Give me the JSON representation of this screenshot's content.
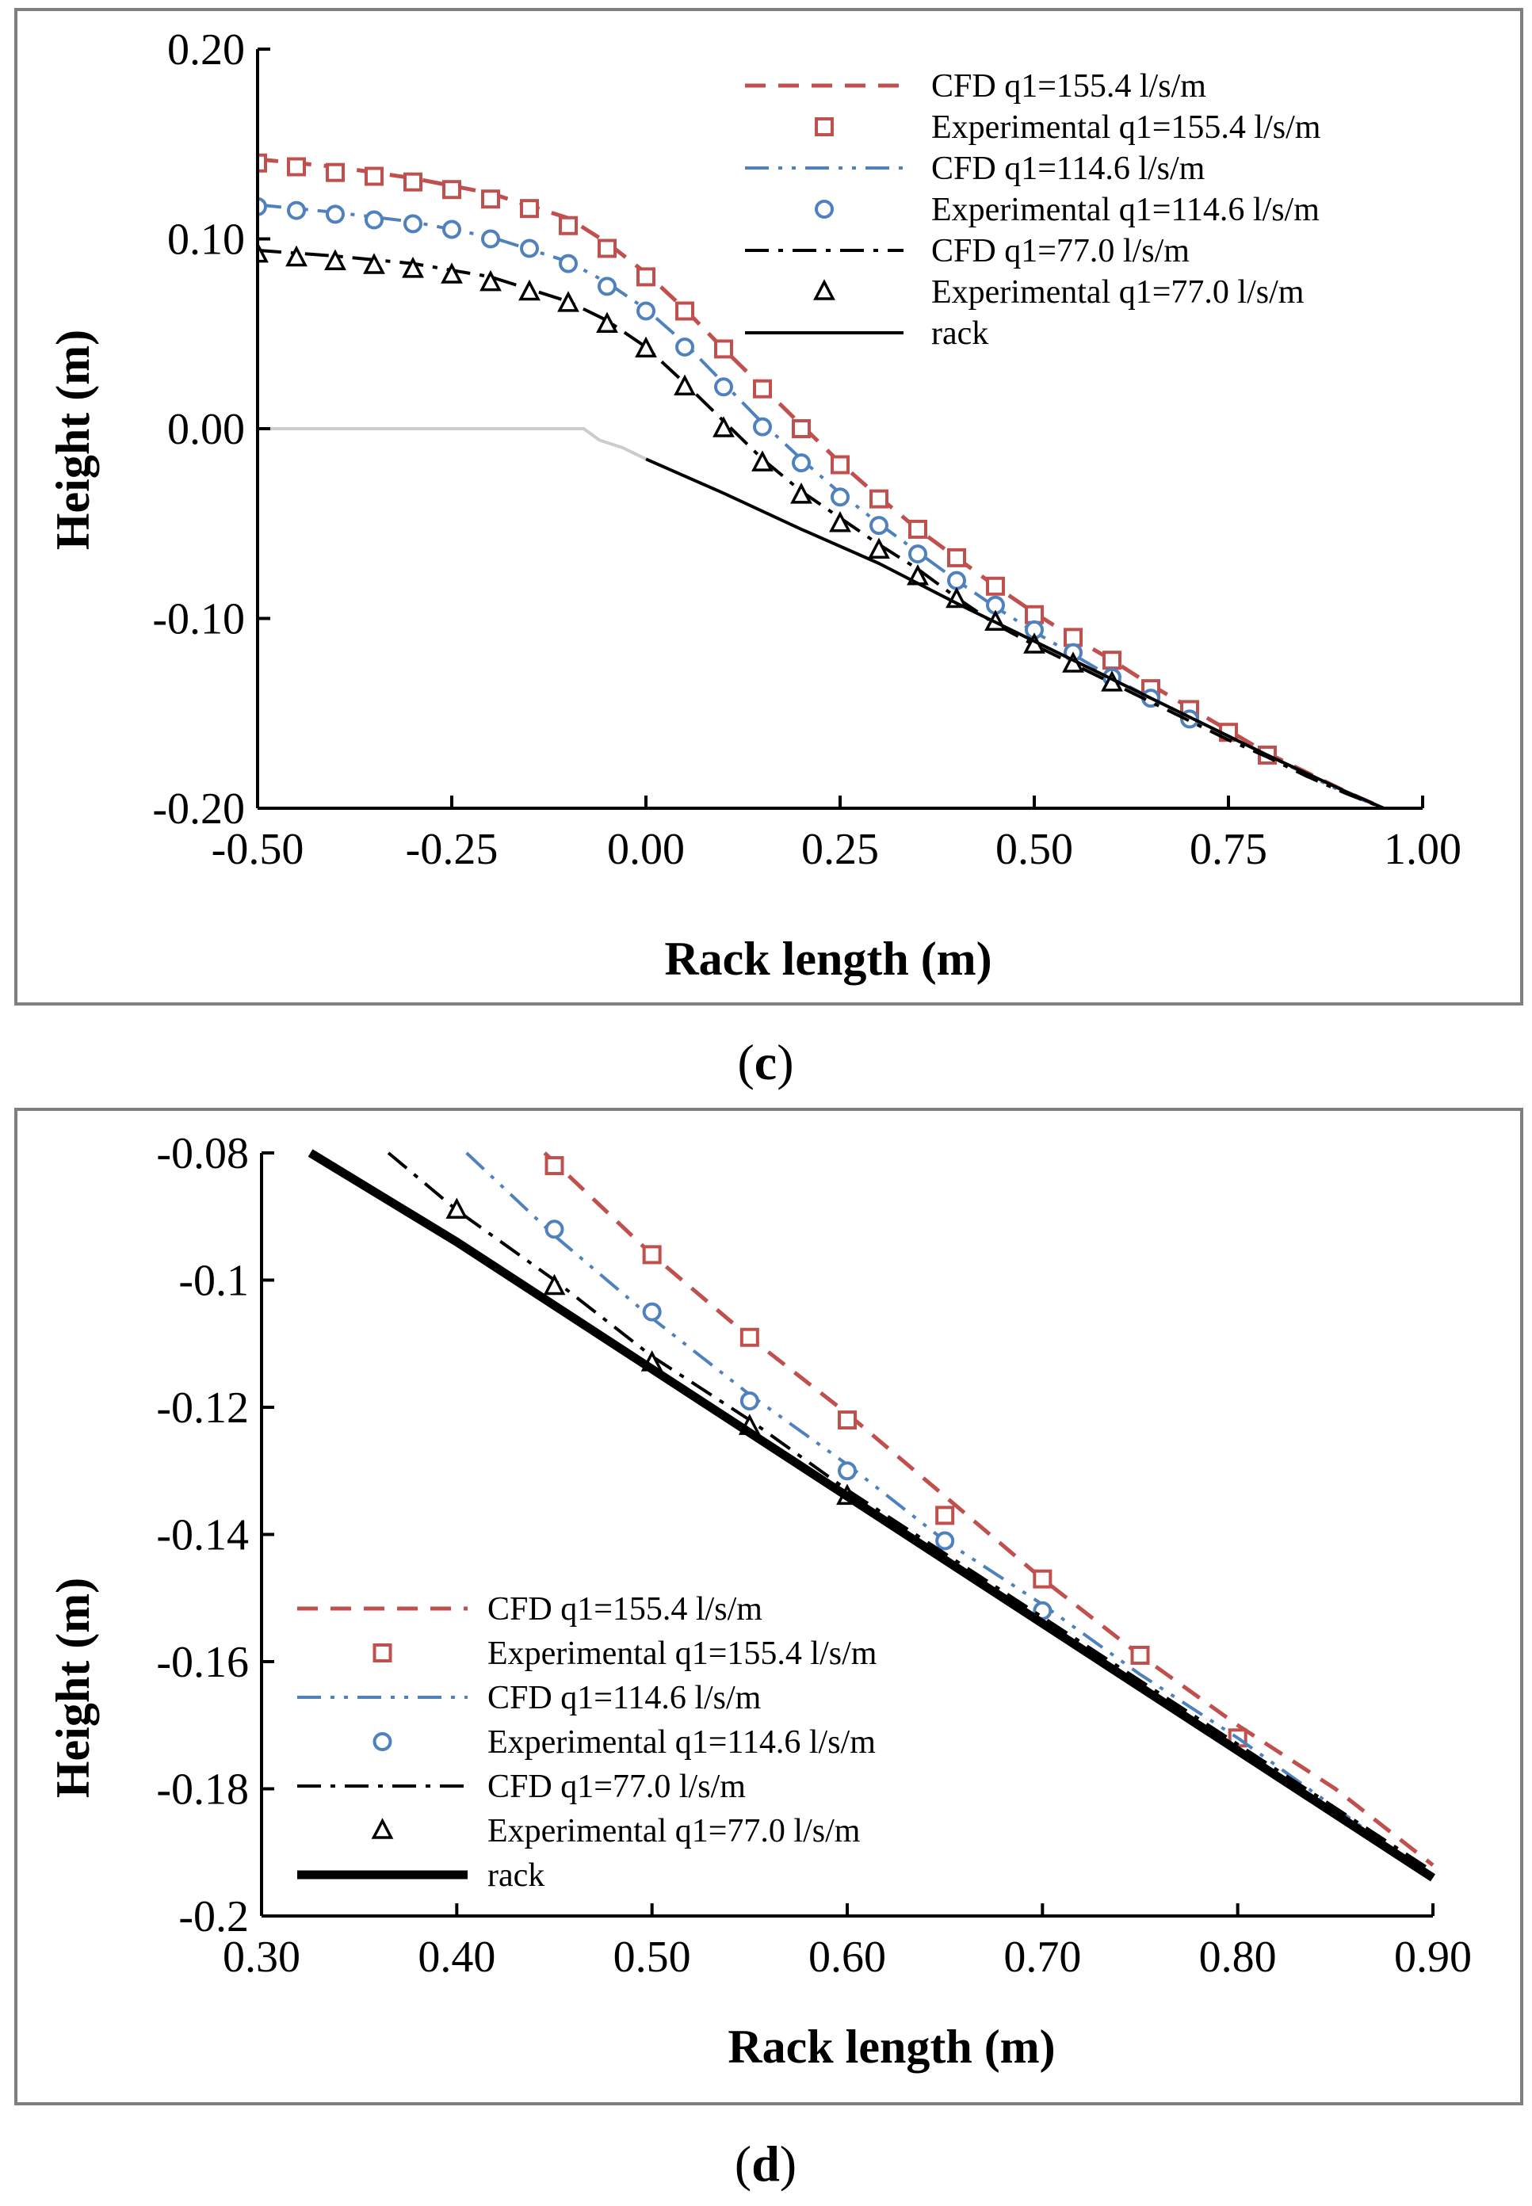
{
  "chart_data": [
    {
      "panel": "c",
      "type": "line",
      "caption": "(c)",
      "xlabel": "Rack length (m)",
      "ylabel": "Height (m)",
      "xlim": [
        -0.5,
        1.0
      ],
      "ylim": [
        -0.2,
        0.2
      ],
      "xticks": [
        -0.5,
        -0.25,
        0.0,
        0.25,
        0.5,
        0.75,
        1.0
      ],
      "yticks": [
        -0.2,
        -0.1,
        0.0,
        0.1,
        0.2
      ],
      "xtick_labels": [
        "-0.50",
        "-0.25",
        "0.00",
        "0.25",
        "0.50",
        "0.75",
        "1.00"
      ],
      "ytick_labels": [
        "-0.20",
        "-0.10",
        "0.00",
        "0.10",
        "0.20"
      ],
      "legend_position": "top-right",
      "series": [
        {
          "name": "CFD q1=155.4 l/s/m",
          "kind": "line",
          "color": "#c0504d",
          "dash": "dashed",
          "x": [
            -0.5,
            -0.4,
            -0.3,
            -0.2,
            -0.1,
            -0.05,
            0.0,
            0.05,
            0.1,
            0.15,
            0.2,
            0.25,
            0.3,
            0.35,
            0.4,
            0.45,
            0.5,
            0.55,
            0.6,
            0.65,
            0.7,
            0.75,
            0.8,
            0.85,
            0.9,
            0.95
          ],
          "y": [
            0.142,
            0.138,
            0.132,
            0.124,
            0.111,
            0.098,
            0.082,
            0.063,
            0.042,
            0.022,
            0.002,
            -0.018,
            -0.036,
            -0.053,
            -0.068,
            -0.083,
            -0.097,
            -0.11,
            -0.122,
            -0.135,
            -0.147,
            -0.159,
            -0.171,
            -0.181,
            -0.191,
            -0.2
          ]
        },
        {
          "name": "Experimental q1=155.4 l/s/m",
          "kind": "marker",
          "marker": "square",
          "color": "#c0504d",
          "x": [
            -0.5,
            -0.45,
            -0.4,
            -0.35,
            -0.3,
            -0.25,
            -0.2,
            -0.15,
            -0.1,
            -0.05,
            0.0,
            0.05,
            0.1,
            0.15,
            0.2,
            0.25,
            0.3,
            0.35,
            0.4,
            0.45,
            0.5,
            0.55,
            0.6,
            0.65,
            0.7,
            0.75,
            0.8
          ],
          "y": [
            0.14,
            0.138,
            0.135,
            0.133,
            0.13,
            0.126,
            0.121,
            0.116,
            0.107,
            0.095,
            0.08,
            0.062,
            0.042,
            0.021,
            0.0,
            -0.019,
            -0.037,
            -0.053,
            -0.068,
            -0.083,
            -0.098,
            -0.11,
            -0.122,
            -0.137,
            -0.148,
            -0.16,
            -0.172
          ]
        },
        {
          "name": "CFD q1=114.6 l/s/m",
          "kind": "line",
          "color": "#4f81bd",
          "dash": "dashdotdot",
          "x": [
            -0.5,
            -0.4,
            -0.3,
            -0.2,
            -0.1,
            -0.05,
            0.0,
            0.05,
            0.1,
            0.15,
            0.2,
            0.25,
            0.3,
            0.35,
            0.4,
            0.45,
            0.5,
            0.55,
            0.6,
            0.65,
            0.7,
            0.75,
            0.8,
            0.85,
            0.9,
            0.95
          ],
          "y": [
            0.118,
            0.114,
            0.109,
            0.101,
            0.088,
            0.077,
            0.063,
            0.045,
            0.024,
            0.003,
            -0.016,
            -0.034,
            -0.05,
            -0.065,
            -0.08,
            -0.094,
            -0.107,
            -0.119,
            -0.131,
            -0.142,
            -0.152,
            -0.162,
            -0.172,
            -0.182,
            -0.192,
            -0.2
          ]
        },
        {
          "name": "Experimental q1=114.6 l/s/m",
          "kind": "marker",
          "marker": "circle",
          "color": "#4f81bd",
          "x": [
            -0.5,
            -0.45,
            -0.4,
            -0.35,
            -0.3,
            -0.25,
            -0.2,
            -0.15,
            -0.1,
            -0.05,
            0.0,
            0.05,
            0.1,
            0.15,
            0.2,
            0.25,
            0.3,
            0.35,
            0.4,
            0.45,
            0.5,
            0.55,
            0.6,
            0.65,
            0.7
          ],
          "y": [
            0.117,
            0.115,
            0.113,
            0.11,
            0.108,
            0.105,
            0.1,
            0.095,
            0.087,
            0.075,
            0.062,
            0.043,
            0.022,
            0.001,
            -0.018,
            -0.036,
            -0.051,
            -0.066,
            -0.08,
            -0.093,
            -0.106,
            -0.118,
            -0.131,
            -0.142,
            -0.153
          ]
        },
        {
          "name": "CFD q1=77.0 l/s/m",
          "kind": "line",
          "color": "#000000",
          "dash": "dashdot",
          "x": [
            -0.5,
            -0.4,
            -0.3,
            -0.2,
            -0.1,
            -0.05,
            0.0,
            0.05,
            0.1,
            0.15,
            0.2,
            0.25,
            0.3,
            0.35,
            0.4,
            0.45,
            0.5,
            0.55,
            0.6,
            0.65,
            0.7,
            0.75,
            0.8,
            0.85,
            0.9,
            0.95
          ],
          "y": [
            0.094,
            0.091,
            0.087,
            0.08,
            0.067,
            0.057,
            0.043,
            0.024,
            0.004,
            -0.016,
            -0.033,
            -0.047,
            -0.061,
            -0.074,
            -0.089,
            -0.103,
            -0.114,
            -0.124,
            -0.134,
            -0.144,
            -0.154,
            -0.164,
            -0.173,
            -0.183,
            -0.192,
            -0.2
          ]
        },
        {
          "name": "Experimental q1=77.0 l/s/m",
          "kind": "marker",
          "marker": "triangle",
          "color": "#000000",
          "x": [
            -0.5,
            -0.45,
            -0.4,
            -0.35,
            -0.3,
            -0.25,
            -0.2,
            -0.15,
            -0.1,
            -0.05,
            0.0,
            0.05,
            0.1,
            0.15,
            0.2,
            0.25,
            0.3,
            0.35,
            0.4,
            0.45,
            0.5,
            0.55,
            0.6
          ],
          "y": [
            0.092,
            0.09,
            0.088,
            0.086,
            0.084,
            0.081,
            0.077,
            0.072,
            0.066,
            0.055,
            0.042,
            0.022,
            0.0,
            -0.018,
            -0.035,
            -0.05,
            -0.064,
            -0.078,
            -0.09,
            -0.102,
            -0.114,
            -0.124,
            -0.134
          ]
        },
        {
          "name": "rack",
          "kind": "line",
          "color": "#000000",
          "dash": "solid",
          "x": [
            0.0,
            0.1,
            0.2,
            0.3,
            0.4,
            0.5,
            0.6,
            0.7,
            0.8,
            0.9,
            0.95
          ],
          "y": [
            -0.016,
            -0.034,
            -0.053,
            -0.071,
            -0.092,
            -0.112,
            -0.132,
            -0.152,
            -0.172,
            -0.191,
            -0.2
          ]
        },
        {
          "name": "",
          "kind": "line",
          "color": "#cccccc",
          "dash": "solid",
          "legend": false,
          "x": [
            -0.5,
            -0.08,
            -0.06,
            -0.03,
            0.0
          ],
          "y": [
            0.0,
            0.0,
            -0.006,
            -0.01,
            -0.016
          ]
        }
      ]
    },
    {
      "panel": "d",
      "type": "line",
      "caption": "(d)",
      "xlabel": "Rack length (m)",
      "ylabel": "Height (m)",
      "xlim": [
        0.3,
        0.9
      ],
      "ylim": [
        -0.2,
        -0.08
      ],
      "xticks": [
        0.3,
        0.4,
        0.5,
        0.6,
        0.7,
        0.8,
        0.9
      ],
      "yticks": [
        -0.2,
        -0.18,
        -0.16,
        -0.14,
        -0.12,
        -0.1,
        -0.08
      ],
      "xtick_labels": [
        "0.30",
        "0.40",
        "0.50",
        "0.60",
        "0.70",
        "0.80",
        "0.90"
      ],
      "ytick_labels": [
        "-0.2",
        "-0.18",
        "-0.16",
        "-0.14",
        "-0.12",
        "-0.1",
        "-0.08"
      ],
      "legend_position": "bottom-left",
      "series": [
        {
          "name": "CFD q1=155.4 l/s/m",
          "kind": "line",
          "color": "#c0504d",
          "dash": "dashed",
          "x": [
            0.445,
            0.5,
            0.55,
            0.6,
            0.65,
            0.7,
            0.75,
            0.8,
            0.85,
            0.9
          ],
          "y": [
            -0.08,
            -0.096,
            -0.109,
            -0.121,
            -0.134,
            -0.147,
            -0.159,
            -0.17,
            -0.18,
            -0.192
          ]
        },
        {
          "name": "Experimental q1=155.4 l/s/m",
          "kind": "marker",
          "marker": "square",
          "color": "#c0504d",
          "x": [
            0.45,
            0.5,
            0.55,
            0.6,
            0.65,
            0.7,
            0.75,
            0.8
          ],
          "y": [
            -0.082,
            -0.096,
            -0.109,
            -0.122,
            -0.137,
            -0.147,
            -0.159,
            -0.172
          ]
        },
        {
          "name": "CFD q1=114.6 l/s/m",
          "kind": "line",
          "color": "#4f81bd",
          "dash": "dashdotdot",
          "x": [
            0.405,
            0.45,
            0.5,
            0.55,
            0.6,
            0.65,
            0.7,
            0.75,
            0.8,
            0.85,
            0.9
          ],
          "y": [
            -0.08,
            -0.093,
            -0.106,
            -0.118,
            -0.129,
            -0.141,
            -0.151,
            -0.162,
            -0.172,
            -0.183,
            -0.194
          ]
        },
        {
          "name": "Experimental q1=114.6 l/s/m",
          "kind": "marker",
          "marker": "circle",
          "color": "#4f81bd",
          "x": [
            0.45,
            0.5,
            0.55,
            0.6,
            0.65,
            0.7
          ],
          "y": [
            -0.092,
            -0.105,
            -0.119,
            -0.13,
            -0.141,
            -0.152
          ]
        },
        {
          "name": "CFD q1=77.0 l/s/m",
          "kind": "line",
          "color": "#000000",
          "dash": "dashdot",
          "x": [
            0.365,
            0.4,
            0.45,
            0.5,
            0.55,
            0.6,
            0.65,
            0.7,
            0.8,
            0.9
          ],
          "y": [
            -0.08,
            -0.089,
            -0.1,
            -0.112,
            -0.122,
            -0.133,
            -0.143,
            -0.153,
            -0.173,
            -0.193
          ]
        },
        {
          "name": "Experimental q1=77.0 l/s/m",
          "kind": "marker",
          "marker": "triangle",
          "color": "#000000",
          "x": [
            0.4,
            0.45,
            0.5,
            0.55,
            0.6
          ],
          "y": [
            -0.089,
            -0.101,
            -0.113,
            -0.123,
            -0.134
          ]
        },
        {
          "name": "rack",
          "kind": "line",
          "color": "#000000",
          "dash": "thick",
          "x": [
            0.325,
            0.4,
            0.5,
            0.6,
            0.7,
            0.8,
            0.9
          ],
          "y": [
            -0.08,
            -0.094,
            -0.114,
            -0.134,
            -0.154,
            -0.174,
            -0.194
          ]
        }
      ]
    }
  ]
}
